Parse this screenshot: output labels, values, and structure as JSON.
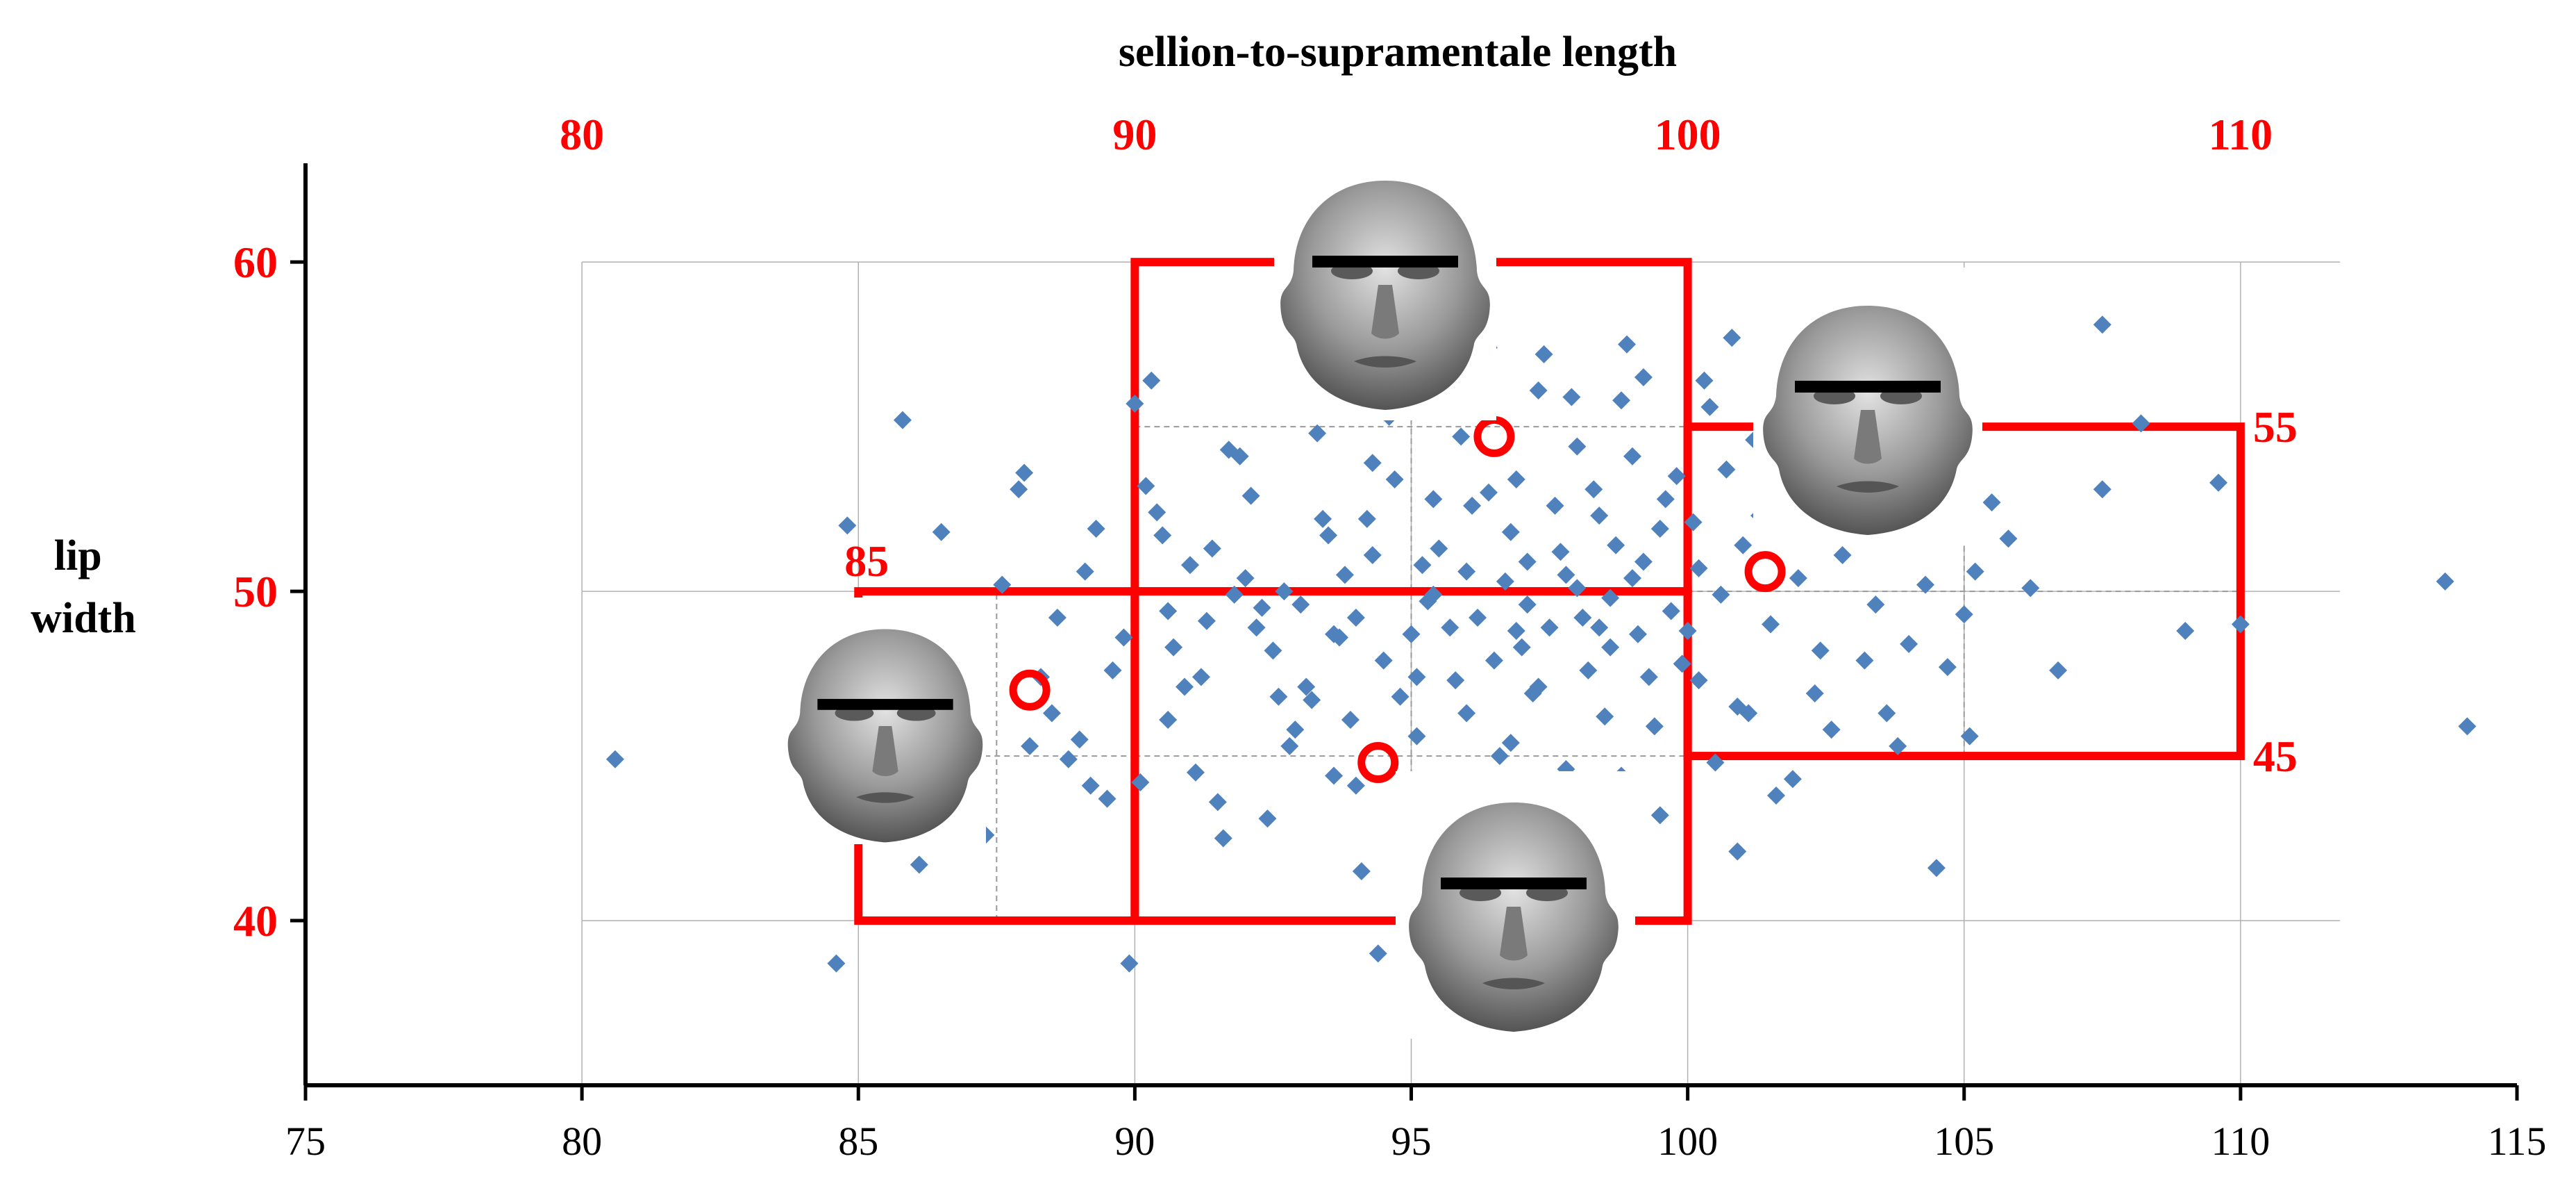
{
  "chart_data": {
    "type": "scatter",
    "title": "",
    "xlabel": "sellion-to-supramentale length",
    "ylabel": "lip width",
    "ylabel_lines": [
      "lip",
      "width"
    ],
    "xlim": [
      75,
      115
    ],
    "ylim": [
      35,
      63
    ],
    "x_ticks": [
      75,
      80,
      85,
      90,
      95,
      100,
      105,
      110,
      115
    ],
    "x_tick_labels": [
      "75",
      "80",
      "85",
      "90",
      "95",
      "100",
      "105",
      "110",
      "115"
    ],
    "top_ticks": [
      80,
      90,
      100,
      110
    ],
    "top_tick_labels": [
      "80",
      "90",
      "100",
      "110"
    ],
    "y_ticks": [
      40,
      50,
      60
    ],
    "y_tick_labels": [
      "40",
      "50",
      "60"
    ],
    "grid": true,
    "colors": {
      "points": "#4f81bd",
      "boxes": "#ff0000",
      "grid": "#b0b0b0",
      "highlight": "#ff0000"
    },
    "boxes": [
      {
        "x": [
          90,
          100
        ],
        "y": [
          50,
          60
        ]
      },
      {
        "x": [
          85,
          90
        ],
        "y": [
          40,
          50
        ]
      },
      {
        "x": [
          90,
          100
        ],
        "y": [
          40,
          50
        ]
      },
      {
        "x": [
          100,
          110
        ],
        "y": [
          45,
          55
        ]
      }
    ],
    "box_labels": [
      {
        "text": "85",
        "x": 85,
        "y": 50
      },
      {
        "text": "55",
        "x": 110,
        "y": 55
      },
      {
        "text": "45",
        "x": 110,
        "y": 45
      }
    ],
    "highlighted_points": [
      {
        "x": 96.5,
        "y": 54.7
      },
      {
        "x": 101.4,
        "y": 50.6
      },
      {
        "x": 88.1,
        "y": 47.0
      },
      {
        "x": 94.4,
        "y": 44.8
      }
    ],
    "face_icons": [
      "face-icon-top",
      "face-icon-right",
      "face-icon-left",
      "face-icon-bottom"
    ],
    "points": [
      [
        80.6,
        44.9
      ],
      [
        84.6,
        38.7
      ],
      [
        84.8,
        52.0
      ],
      [
        85.8,
        55.2
      ],
      [
        86.1,
        41.7
      ],
      [
        87.0,
        48.1
      ],
      [
        87.3,
        42.6
      ],
      [
        87.6,
        50.2
      ],
      [
        87.9,
        53.1
      ],
      [
        88.0,
        53.6
      ],
      [
        88.1,
        45.3
      ],
      [
        88.3,
        47.4
      ],
      [
        88.6,
        49.2
      ],
      [
        88.8,
        44.9
      ],
      [
        89.0,
        45.5
      ],
      [
        89.2,
        44.1
      ],
      [
        89.3,
        51.9
      ],
      [
        89.5,
        43.7
      ],
      [
        89.6,
        47.6
      ],
      [
        89.8,
        48.6
      ],
      [
        89.9,
        38.7
      ],
      [
        90.0,
        55.7
      ],
      [
        90.1,
        44.2
      ],
      [
        90.2,
        53.2
      ],
      [
        90.4,
        52.4
      ],
      [
        90.5,
        51.7
      ],
      [
        90.6,
        46.1
      ],
      [
        90.7,
        48.3
      ],
      [
        90.9,
        47.1
      ],
      [
        91.0,
        50.8
      ],
      [
        91.1,
        44.5
      ],
      [
        91.3,
        49.1
      ],
      [
        91.4,
        51.3
      ],
      [
        91.5,
        43.6
      ],
      [
        91.6,
        42.5
      ],
      [
        91.7,
        54.3
      ],
      [
        91.9,
        54.1
      ],
      [
        92.0,
        50.4
      ],
      [
        92.2,
        48.9
      ],
      [
        92.3,
        49.5
      ],
      [
        92.4,
        43.1
      ],
      [
        92.5,
        48.2
      ],
      [
        92.6,
        46.8
      ],
      [
        92.8,
        45.3
      ],
      [
        93.0,
        49.6
      ],
      [
        93.1,
        47.1
      ],
      [
        93.2,
        46.7
      ],
      [
        93.4,
        52.2
      ],
      [
        93.5,
        51.7
      ],
      [
        93.6,
        44.4
      ],
      [
        93.7,
        48.6
      ],
      [
        93.8,
        50.5
      ],
      [
        94.0,
        49.2
      ],
      [
        94.1,
        41.5
      ],
      [
        94.2,
        52.2
      ],
      [
        94.3,
        51.1
      ],
      [
        94.4,
        39.0
      ],
      [
        94.5,
        47.9
      ],
      [
        94.6,
        55.3
      ],
      [
        94.7,
        53.4
      ],
      [
        94.8,
        46.8
      ],
      [
        95.0,
        48.7
      ],
      [
        95.1,
        45.6
      ],
      [
        95.2,
        50.8
      ],
      [
        95.3,
        49.7
      ],
      [
        95.4,
        52.8
      ],
      [
        95.5,
        51.3
      ],
      [
        95.7,
        48.9
      ],
      [
        95.8,
        47.3
      ],
      [
        95.9,
        54.7
      ],
      [
        96.0,
        50.6
      ],
      [
        96.1,
        52.6
      ],
      [
        96.2,
        49.2
      ],
      [
        96.3,
        56.5
      ],
      [
        96.4,
        57.4
      ],
      [
        96.5,
        47.9
      ],
      [
        96.6,
        45.0
      ],
      [
        96.7,
        50.3
      ],
      [
        96.8,
        51.8
      ],
      [
        96.9,
        53.4
      ],
      [
        97.0,
        48.3
      ],
      [
        97.1,
        49.6
      ],
      [
        97.2,
        46.9
      ],
      [
        97.3,
        56.1
      ],
      [
        97.4,
        57.2
      ],
      [
        97.5,
        48.9
      ],
      [
        97.6,
        52.6
      ],
      [
        97.7,
        51.2
      ],
      [
        97.8,
        44.6
      ],
      [
        97.9,
        55.9
      ],
      [
        98.0,
        50.1
      ],
      [
        98.1,
        49.2
      ],
      [
        98.2,
        47.6
      ],
      [
        98.3,
        53.1
      ],
      [
        98.4,
        52.3
      ],
      [
        98.5,
        46.2
      ],
      [
        98.6,
        49.8
      ],
      [
        98.7,
        51.4
      ],
      [
        98.8,
        55.8
      ],
      [
        98.9,
        57.5
      ],
      [
        99.0,
        54.1
      ],
      [
        99.1,
        48.7
      ],
      [
        99.2,
        50.9
      ],
      [
        99.3,
        47.4
      ],
      [
        99.4,
        45.9
      ],
      [
        99.5,
        51.9
      ],
      [
        99.6,
        52.8
      ],
      [
        99.7,
        49.4
      ],
      [
        99.8,
        53.5
      ],
      [
        99.9,
        47.8
      ],
      [
        100.0,
        48.8
      ],
      [
        100.1,
        52.1
      ],
      [
        100.2,
        47.3
      ],
      [
        100.3,
        56.4
      ],
      [
        100.5,
        44.8
      ],
      [
        100.6,
        49.9
      ],
      [
        100.7,
        53.7
      ],
      [
        100.8,
        57.7
      ],
      [
        100.9,
        42.1
      ],
      [
        101.0,
        51.4
      ],
      [
        101.1,
        46.3
      ],
      [
        101.2,
        54.6
      ],
      [
        101.3,
        52.3
      ],
      [
        101.5,
        49.0
      ],
      [
        101.6,
        43.8
      ],
      [
        101.7,
        55.1
      ],
      [
        101.9,
        44.3
      ],
      [
        102.0,
        50.4
      ],
      [
        102.2,
        53.2
      ],
      [
        102.4,
        48.2
      ],
      [
        102.6,
        45.8
      ],
      [
        102.8,
        51.1
      ],
      [
        103.0,
        52.5
      ],
      [
        103.2,
        47.9
      ],
      [
        103.4,
        49.6
      ],
      [
        103.6,
        46.3
      ],
      [
        103.8,
        51.7
      ],
      [
        104.0,
        48.4
      ],
      [
        104.3,
        50.2
      ],
      [
        104.5,
        41.6
      ],
      [
        104.7,
        47.7
      ],
      [
        105.0,
        49.3
      ],
      [
        105.2,
        50.6
      ],
      [
        105.5,
        52.7
      ],
      [
        105.8,
        51.6
      ],
      [
        106.2,
        50.1
      ],
      [
        106.7,
        47.6
      ],
      [
        107.5,
        53.1
      ],
      [
        107.5,
        58.1
      ],
      [
        108.2,
        55.1
      ],
      [
        109.0,
        48.8
      ],
      [
        109.6,
        53.3
      ],
      [
        110.0,
        49.0
      ],
      [
        113.7,
        50.3
      ],
      [
        114.1,
        45.9
      ],
      [
        86.5,
        51.8
      ],
      [
        88.5,
        46.3
      ],
      [
        89.1,
        50.6
      ],
      [
        90.3,
        56.4
      ],
      [
        91.2,
        47.4
      ],
      [
        92.1,
        52.9
      ],
      [
        93.3,
        54.8
      ],
      [
        94.9,
        43.3
      ],
      [
        95.6,
        44.2
      ],
      [
        96.8,
        45.4
      ],
      [
        97.5,
        43.7
      ],
      [
        98.8,
        44.4
      ],
      [
        99.5,
        43.2
      ],
      [
        93.9,
        46.1
      ],
      [
        95.1,
        47.4
      ],
      [
        96.0,
        46.3
      ],
      [
        97.3,
        47.1
      ],
      [
        98.6,
        48.3
      ],
      [
        92.7,
        50.0
      ],
      [
        94.3,
        53.9
      ],
      [
        96.4,
        53.0
      ],
      [
        98.0,
        54.4
      ],
      [
        99.2,
        56.5
      ],
      [
        100.4,
        55.6
      ],
      [
        101.9,
        56.9
      ],
      [
        102.8,
        58.2
      ],
      [
        103.5,
        54.0
      ],
      [
        104.1,
        53.6
      ],
      [
        100.9,
        46.5
      ],
      [
        102.3,
        46.9
      ],
      [
        103.8,
        45.3
      ],
      [
        105.1,
        45.6
      ],
      [
        97.8,
        50.5
      ],
      [
        95.4,
        49.9
      ],
      [
        93.6,
        48.7
      ],
      [
        91.8,
        49.9
      ],
      [
        90.6,
        49.4
      ],
      [
        92.9,
        45.8
      ],
      [
        94.0,
        44.1
      ],
      [
        96.1,
        42.8
      ],
      [
        97.1,
        50.9
      ],
      [
        99.0,
        50.4
      ],
      [
        100.2,
        50.7
      ],
      [
        98.4,
        48.9
      ],
      [
        96.9,
        48.8
      ]
    ]
  }
}
